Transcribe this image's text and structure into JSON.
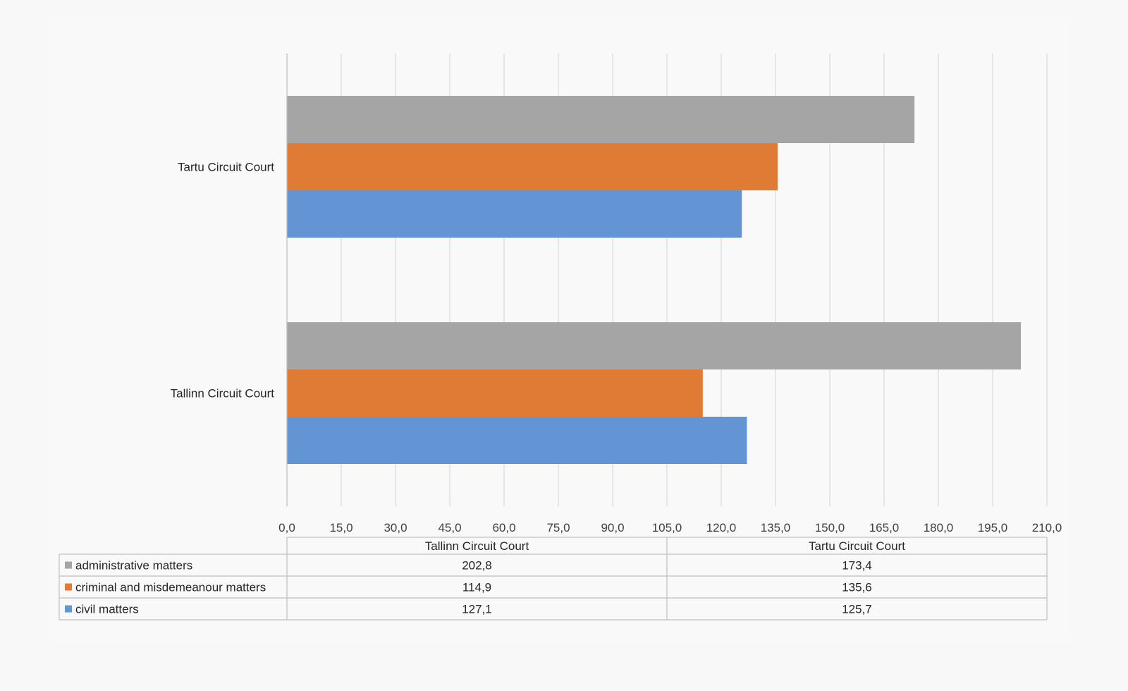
{
  "chart_data": {
    "type": "bar",
    "orientation": "horizontal",
    "categories": [
      "Tallinn Circuit Court",
      "Tartu Circuit Court"
    ],
    "series": [
      {
        "name": "administrative matters",
        "values": [
          202.8,
          173.4
        ],
        "color": "#a5a5a5"
      },
      {
        "name": "criminal and misdemeanour matters",
        "values": [
          114.9,
          135.6
        ],
        "color": "#e07b35"
      },
      {
        "name": "civil matters",
        "values": [
          127.1,
          125.7
        ],
        "color": "#6394d4"
      }
    ],
    "value_labels": {
      "administrative matters": [
        "202,8",
        "173,4"
      ],
      "criminal and misdemeanour matters": [
        "114,9",
        "135,6"
      ],
      "civil matters": [
        "127,1",
        "125,7"
      ]
    },
    "xlim": [
      0,
      210
    ],
    "xticks": [
      "0,0",
      "15,0",
      "30,0",
      "45,0",
      "60,0",
      "75,0",
      "90,0",
      "105,0",
      "120,0",
      "135,0",
      "150,0",
      "165,0",
      "180,0",
      "195,0",
      "210,0"
    ],
    "grid": true,
    "legend": "data-table",
    "title": "",
    "xlabel": "",
    "ylabel": ""
  }
}
